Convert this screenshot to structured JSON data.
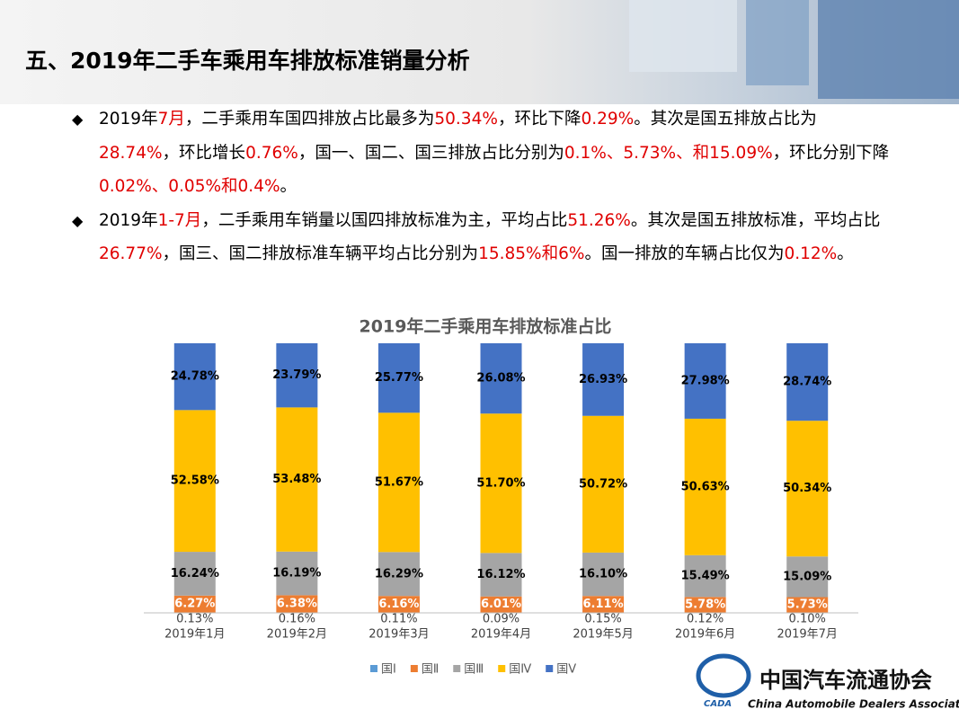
{
  "header": {
    "title": "五、2019年二手车乘用车排放标准销量分析"
  },
  "bullets": [
    {
      "runs": [
        {
          "text": "2019年"
        },
        {
          "text": "7月",
          "red": true
        },
        {
          "text": "，二手乘用车国四排放占比最多为"
        },
        {
          "text": "50.34%",
          "red": true
        },
        {
          "text": "，环比下降"
        },
        {
          "text": "0.29%",
          "red": true
        },
        {
          "text": "。其次是国五排放占比为"
        },
        {
          "text": "28.74%",
          "red": true
        },
        {
          "text": "，环比增长"
        },
        {
          "text": "0.76%",
          "red": true
        },
        {
          "text": "，国一、国二、国三排放占比分别为"
        },
        {
          "text": "0.1%、5.73%、和15.09%",
          "red": true
        },
        {
          "text": "，环比分别下降"
        },
        {
          "text": "0.02%、0.05%和0.4%",
          "red": true
        },
        {
          "text": "。"
        }
      ]
    },
    {
      "runs": [
        {
          "text": "2019年"
        },
        {
          "text": "1-7月",
          "red": true
        },
        {
          "text": "，二手乘用车销量以国四排放标准为主，平均占比"
        },
        {
          "text": "51.26%",
          "red": true
        },
        {
          "text": "。其次是国五排放标准，平均占比"
        },
        {
          "text": "26.77%",
          "red": true
        },
        {
          "text": "，国三、国二排放标准车辆平均占比分别为"
        },
        {
          "text": "15.85%和6%",
          "red": true
        },
        {
          "text": "。国一排放的车辆占比仅为"
        },
        {
          "text": "0.12%",
          "red": true
        },
        {
          "text": "。"
        }
      ]
    }
  ],
  "chart_data": {
    "type": "stacked_bar",
    "title": "2019年二手乘用车排放标准占比",
    "categories": [
      "2019年1月",
      "2019年2月",
      "2019年3月",
      "2019年4月",
      "2019年5月",
      "2019年6月",
      "2019年7月"
    ],
    "ylim": [
      0,
      100
    ],
    "series": [
      {
        "name": "国Ⅰ",
        "color": "#5b9bd5",
        "label_color": "#404040",
        "values": [
          0.13,
          0.16,
          0.11,
          0.09,
          0.15,
          0.12,
          0.1
        ],
        "value_labels": [
          "0.13%",
          "0.16%",
          "0.11%",
          "0.09%",
          "0.15%",
          "0.12%",
          "0.10%"
        ]
      },
      {
        "name": "国Ⅱ",
        "color": "#ed7d31",
        "label_color": "#ffffff",
        "values": [
          6.27,
          6.38,
          6.16,
          6.01,
          6.11,
          5.78,
          5.73
        ],
        "value_labels": [
          "6.27%",
          "6.38%",
          "6.16%",
          "6.01%",
          "6.11%",
          "5.78%",
          "5.73%"
        ]
      },
      {
        "name": "国Ⅲ",
        "color": "#a5a5a5",
        "label_color": "#000000",
        "values": [
          16.24,
          16.19,
          16.29,
          16.12,
          16.1,
          15.49,
          15.09
        ],
        "value_labels": [
          "16.24%",
          "16.19%",
          "16.29%",
          "16.12%",
          "16.10%",
          "15.49%",
          "15.09%"
        ]
      },
      {
        "name": "国Ⅳ",
        "color": "#ffc000",
        "label_color": "#000000",
        "values": [
          52.58,
          53.48,
          51.67,
          51.7,
          50.72,
          50.63,
          50.34
        ],
        "value_labels": [
          "52.58%",
          "53.48%",
          "51.67%",
          "51.70%",
          "50.72%",
          "50.63%",
          "50.34%"
        ]
      },
      {
        "name": "国Ⅴ",
        "color": "#4472c4",
        "label_color": "#000000",
        "values": [
          24.78,
          23.79,
          25.77,
          26.08,
          26.93,
          27.98,
          28.74
        ],
        "value_labels": [
          "24.78%",
          "23.79%",
          "25.77%",
          "26.08%",
          "26.93%",
          "27.98%",
          "28.74%"
        ]
      }
    ]
  },
  "logo": {
    "name": "中国汽车流通协会",
    "english": "China Automobile Dealers Association",
    "abbr": "CADA"
  }
}
